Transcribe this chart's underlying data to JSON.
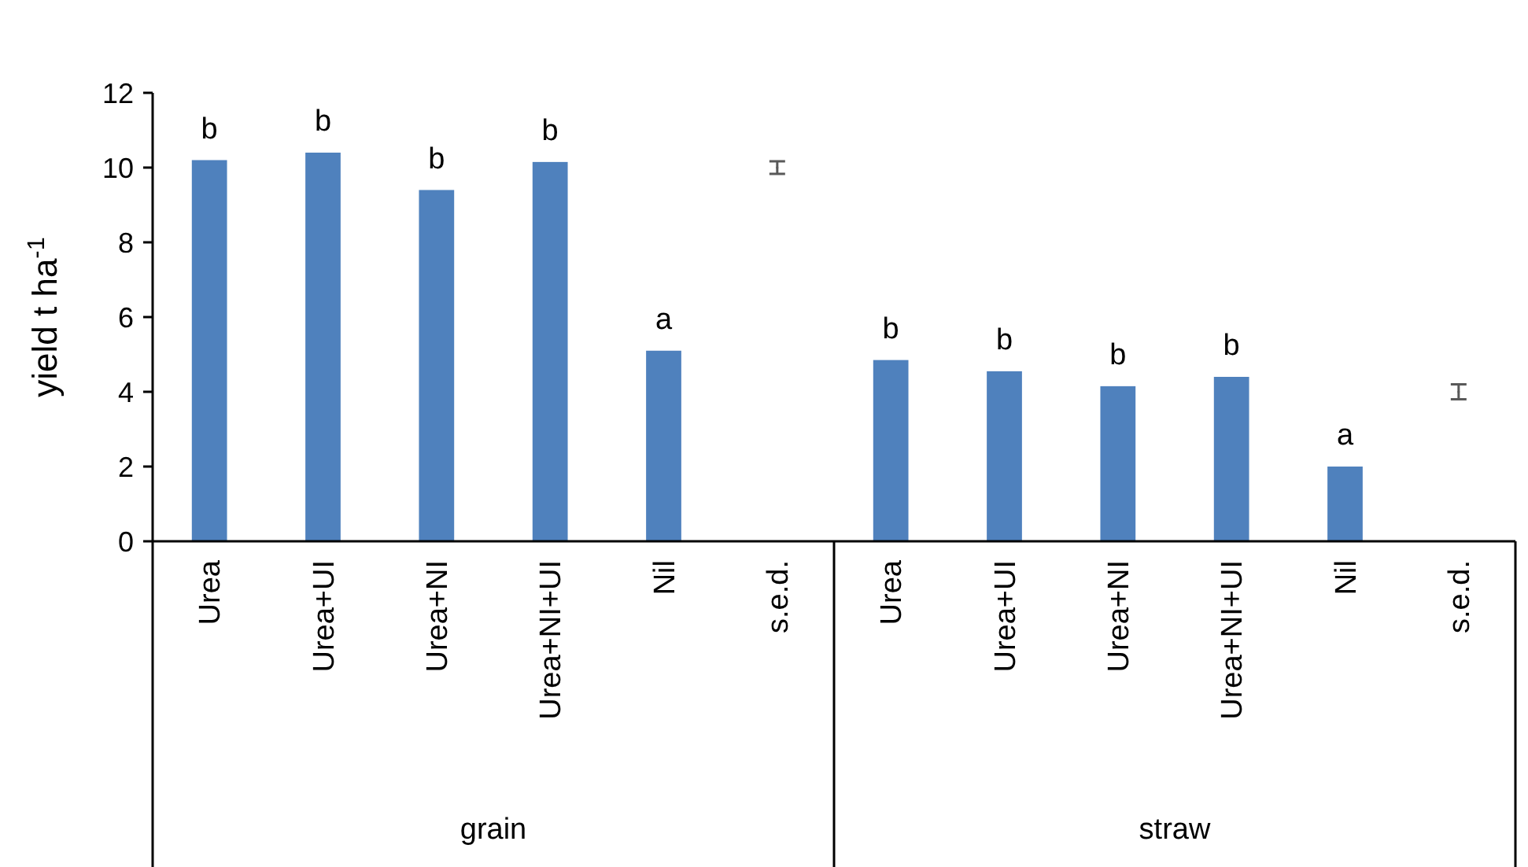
{
  "chart_data": {
    "type": "bar",
    "ylabel": "yield t ha$^{-1}$",
    "categories": [
      "Urea",
      "Urea+UI",
      "Urea+NI",
      "Urea+NI+UI",
      "Nil",
      "s.e.d.",
      "Urea",
      "Urea+UI",
      "Urea+NI",
      "Urea+NI+UI",
      "Nil",
      "s.e.d."
    ],
    "series": [
      {
        "color": "#4f81bd",
        "values": [
          10.2,
          10.4,
          9.4,
          10.15,
          5.1,
          null,
          4.85,
          4.55,
          4.15,
          4.4,
          2.0,
          null
        ],
        "value_labels": [
          "b",
          "b",
          "b",
          "b",
          "a",
          null,
          "b",
          "b",
          "b",
          "b",
          "a",
          null
        ]
      },
      {
        "type": "scatter",
        "color": "#595959",
        "values": [
          null,
          null,
          null,
          null,
          null,
          10.0,
          null,
          null,
          null,
          null,
          null,
          4.0
        ],
        "errors": [
          null,
          null,
          null,
          null,
          null,
          0.17,
          null,
          null,
          null,
          null,
          null,
          0.2
        ]
      }
    ],
    "annotations": [
      "grain",
      "straw"
    ],
    "ylim": [
      0,
      12
    ],
    "yticks": [
      0,
      2,
      4,
      6,
      8,
      10,
      12
    ],
    "grid": false
  }
}
